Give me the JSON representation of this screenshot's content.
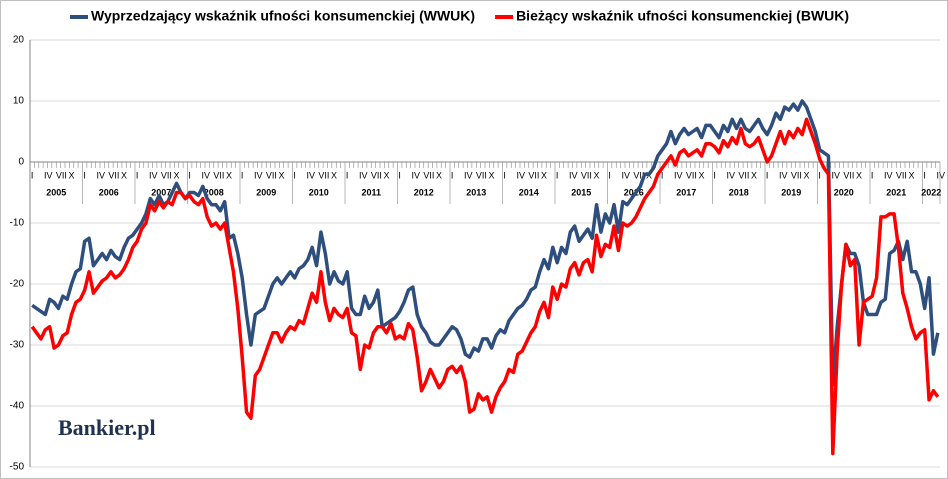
{
  "chart_data": {
    "type": "line",
    "watermark": "Bankier.pl",
    "categories": [
      "I",
      null,
      null,
      "IV",
      null,
      null,
      "VII",
      null,
      null,
      "X",
      null,
      null,
      "I",
      null,
      null,
      "IV",
      null,
      null,
      "VII",
      null,
      null,
      "X",
      null,
      null,
      "I",
      null,
      null,
      "IV",
      null,
      null,
      "VII",
      null,
      null,
      "X",
      null,
      null,
      "I",
      null,
      null,
      "IV",
      null,
      null,
      "VII",
      null,
      null,
      "X",
      null,
      null,
      "I",
      null,
      null,
      "IV",
      null,
      null,
      "VII",
      null,
      null,
      "X",
      null,
      null,
      "I",
      null,
      null,
      "IV",
      null,
      null,
      "VII",
      null,
      null,
      "X",
      null,
      null,
      "I",
      null,
      null,
      "IV",
      null,
      null,
      "VII",
      null,
      null,
      "X",
      null,
      null,
      "I",
      null,
      null,
      "IV",
      null,
      null,
      "VII",
      null,
      null,
      "X",
      null,
      null,
      "I",
      null,
      null,
      "IV",
      null,
      null,
      "VII",
      null,
      null,
      "X",
      null,
      null,
      "I",
      null,
      null,
      "IV",
      null,
      null,
      "VII",
      null,
      null,
      "X",
      null,
      null,
      "I",
      null,
      null,
      "IV",
      null,
      null,
      "VII",
      null,
      null,
      "X",
      null,
      null,
      "I",
      null,
      null,
      "IV",
      null,
      null,
      "VII",
      null,
      null,
      "X",
      null,
      null,
      "I",
      null,
      null,
      "IV",
      null,
      null,
      "VII",
      null,
      null,
      "X",
      null,
      null,
      "I",
      null,
      null,
      "IV",
      null,
      null,
      "VII",
      null,
      null,
      "X",
      null,
      null,
      "I",
      null,
      null,
      "IV",
      null,
      null,
      "VII",
      null,
      null,
      "X",
      null,
      null,
      "I",
      null,
      null,
      "IV",
      null,
      null,
      "VII",
      null,
      null,
      "X",
      null,
      null,
      "I",
      null,
      null,
      "IV",
      null,
      null,
      "VII",
      null,
      null,
      "X",
      null,
      null,
      "I",
      null,
      null,
      "IV"
    ],
    "year_labels": [
      "2005",
      "2006",
      "2007",
      "2008",
      "2009",
      "2010",
      "2011",
      "2012",
      "2013",
      "2014",
      "2015",
      "2016",
      "2017",
      "2018",
      "2019",
      "2020",
      "2021",
      "2022"
    ],
    "series": [
      {
        "name": "Wyprzedzający wskaźnik ufności konsumenckiej (WWUK)",
        "color": "#2e4f7e",
        "values": [
          -23.5,
          -24,
          -24.5,
          -25,
          -22.5,
          -23,
          -24,
          -22,
          -22.5,
          -20,
          -18,
          -17.5,
          -13,
          -12.5,
          -17,
          -16,
          -15,
          -16,
          -14.5,
          -15.5,
          -16,
          -14,
          -12.5,
          -12,
          -11,
          -10,
          -8.5,
          -6,
          -7,
          -5.5,
          -7,
          -6.5,
          -5,
          -3.5,
          -5,
          -6,
          -5,
          -5,
          -5.5,
          -4,
          -6,
          -7,
          -7,
          -8,
          -6.5,
          -12.5,
          -12,
          -15,
          -19,
          -25,
          -30,
          -25,
          -24.5,
          -24,
          -22,
          -20,
          -19,
          -20,
          -19,
          -18,
          -19,
          -17.5,
          -17,
          -16,
          -14,
          -17,
          -11.5,
          -15,
          -20,
          -18,
          -19.5,
          -20,
          -18,
          -24,
          -25,
          -25,
          -22,
          -24,
          -23,
          -21,
          -27,
          -26.5,
          -26,
          -25.5,
          -24.5,
          -23,
          -21,
          -20.5,
          -25,
          -27,
          -28,
          -29.5,
          -30,
          -30,
          -29,
          -28,
          -27,
          -27.5,
          -29,
          -31.5,
          -32,
          -30.5,
          -31,
          -29,
          -29,
          -30.5,
          -28.5,
          -27.5,
          -28,
          -26,
          -25,
          -24,
          -23.5,
          -22.5,
          -21,
          -20.5,
          -18,
          -16,
          -17.5,
          -14,
          -16.5,
          -14,
          -15,
          -11.5,
          -10.5,
          -13,
          -12,
          -11,
          -12.5,
          -7,
          -11.5,
          -8.5,
          -10,
          -7,
          -11.5,
          -6.5,
          -7,
          -6,
          -5,
          -4,
          -2,
          -2,
          -1,
          1,
          2,
          3,
          5,
          3,
          4.5,
          5.5,
          4.5,
          5,
          5.5,
          4,
          6,
          6,
          5,
          4,
          6,
          5,
          7,
          5.5,
          7,
          5.5,
          5,
          6,
          7,
          5.5,
          4.5,
          6,
          8,
          7,
          9,
          8.5,
          9.5,
          8.5,
          10,
          9,
          7,
          5,
          2,
          1.5,
          1,
          -36.5,
          -27,
          -20,
          -13.5,
          -15,
          -15,
          -17,
          -23,
          -25,
          -25,
          -25,
          -23,
          -22.5,
          -15,
          -14.5,
          -13,
          -16,
          -13,
          -18,
          -18,
          -20,
          -24,
          -19,
          -31.5,
          -28
        ]
      },
      {
        "name": "Bieżący wskaźnik ufności konsumenckiej (BWUK)",
        "color": "#ff0000",
        "values": [
          -27,
          -28,
          -29,
          -27.5,
          -27,
          -30.5,
          -30,
          -28.5,
          -28,
          -25,
          -23,
          -22.5,
          -21,
          -18,
          -21.5,
          -20.5,
          -19.5,
          -19,
          -18,
          -19,
          -18.5,
          -17.5,
          -16,
          -14,
          -13,
          -11,
          -10,
          -7,
          -8,
          -6.5,
          -7.5,
          -6.5,
          -7,
          -5,
          -5,
          -6,
          -5.5,
          -6.5,
          -7,
          -6,
          -9,
          -10.5,
          -10,
          -11,
          -10,
          -14,
          -18,
          -24,
          -32,
          -41,
          -42,
          -35,
          -34,
          -32,
          -30,
          -28,
          -28,
          -29.5,
          -28,
          -27,
          -27.5,
          -26,
          -26.5,
          -24,
          -21.5,
          -23,
          -18,
          -23,
          -26,
          -24,
          -25,
          -25.5,
          -24,
          -28,
          -28.5,
          -34,
          -30,
          -30.5,
          -28,
          -27,
          -27,
          -28,
          -26.5,
          -29,
          -28.5,
          -29,
          -26.5,
          -27.5,
          -32,
          -37.5,
          -36,
          -34,
          -35.5,
          -37,
          -36,
          -34,
          -33.5,
          -34.5,
          -33.5,
          -36,
          -41,
          -40.5,
          -38,
          -39,
          -38.5,
          -41,
          -38.5,
          -37,
          -36,
          -34,
          -34.5,
          -31.5,
          -31,
          -29.5,
          -28,
          -27,
          -24.5,
          -23,
          -25.5,
          -20.5,
          -22.5,
          -20,
          -20.5,
          -17.5,
          -16.5,
          -18.5,
          -16.5,
          -16,
          -18,
          -12,
          -15.5,
          -13.5,
          -14,
          -10.5,
          -14.5,
          -10,
          -10.5,
          -10,
          -9,
          -7.5,
          -6,
          -5,
          -4,
          -2,
          -1,
          0,
          1,
          -0.5,
          1.5,
          2,
          1,
          1.5,
          2,
          1,
          3,
          3,
          2.5,
          1.5,
          3.5,
          2.5,
          4,
          3,
          5.5,
          3,
          2.5,
          3,
          4,
          2,
          0,
          1,
          3,
          5,
          3,
          5,
          4,
          5.5,
          4.5,
          7,
          5,
          3,
          0.5,
          -1,
          -2,
          -47.8,
          -31,
          -20,
          -13.5,
          -17,
          -16,
          -30,
          -23,
          -22.5,
          -22,
          -19,
          -9,
          -9,
          -8.5,
          -8.5,
          -14,
          -21.5,
          -24,
          -27,
          -29,
          -28,
          -27.5,
          -39,
          -37.5,
          -38.5
        ]
      }
    ],
    "ylim": [
      -50,
      20
    ],
    "yticks": [
      -50,
      -40,
      -30,
      -20,
      -10,
      0,
      10,
      20
    ],
    "grid": true
  }
}
